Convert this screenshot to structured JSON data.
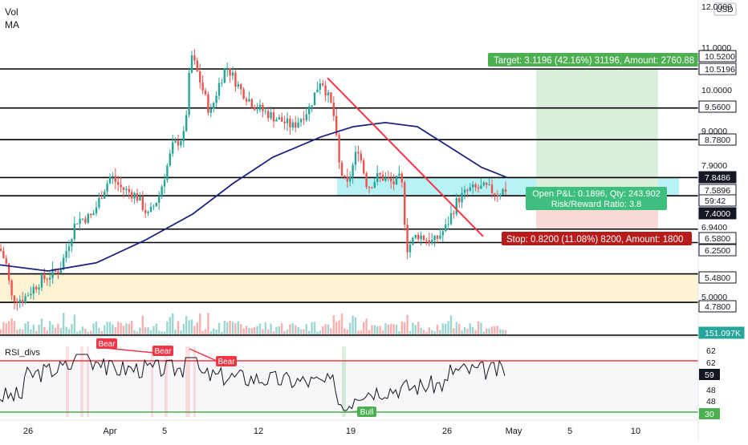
{
  "legend": {
    "vol": "Vol",
    "ma": "MA"
  },
  "currency": "USD",
  "rsi_label": "RSI_divs",
  "colors": {
    "up": "#26a69a",
    "down": "#ef5350",
    "ma": "#1a237e",
    "hline": "#000000",
    "trend": "#f23645",
    "zone_cyan": "#7fe8ef",
    "zone_orange": "#fff3d6",
    "target_fill": "#d9efdb",
    "stop_fill": "#f9d9d7",
    "target_label": "#4caf50",
    "stop_label": "#b71c1c",
    "pnl_label": "#3fbf7f",
    "rsi_line": "#131722",
    "rsi_upper": "#f23645",
    "rsi_lower": "#4caf50"
  },
  "price_axis": {
    "ticks": [
      "12.0000",
      "11.0000",
      "10.0000",
      "9.0000",
      "7.9000",
      "6.9400",
      "6.2500",
      "5.0000"
    ],
    "badges": [
      {
        "text": "10.5200",
        "style": "outline"
      },
      {
        "text": "10.5196",
        "style": "outline"
      },
      {
        "text": "9.5600",
        "style": "outline"
      },
      {
        "text": "8.7800",
        "style": "outline"
      },
      {
        "text": "7.8486",
        "style": "dark"
      },
      {
        "text": "7.5896",
        "style": "outline"
      },
      {
        "text": "59:42",
        "style": "outline"
      },
      {
        "text": "7.4000",
        "style": "dark"
      },
      {
        "text": "6.5800",
        "style": "outline"
      },
      {
        "text": "6.2500",
        "style": "outline"
      },
      {
        "text": "5.4800",
        "style": "outline"
      },
      {
        "text": "4.7800",
        "style": "outline"
      },
      {
        "text": "151.097K",
        "style": "teal"
      }
    ]
  },
  "rsi_axis": {
    "ticks": [
      "62",
      "62",
      "48",
      "48"
    ],
    "badges": [
      {
        "text": "59",
        "style": "dark"
      },
      {
        "text": "30",
        "style": "green"
      }
    ]
  },
  "time_axis": [
    "26",
    "Apr",
    "5",
    "12",
    "19",
    "26",
    "May",
    "5",
    "10"
  ],
  "position": {
    "target_text": "Target: 3.1196 (42.16%) 31196, Amount: 2760.88",
    "pnl_line1": "Open P&L: 0.1896, Qty: 243.902",
    "pnl_line2": "Risk/Reward Ratio: 3.8",
    "stop_text": "Stop: 0.8200 (11.08%) 8200, Amount: 1800"
  },
  "signals": {
    "bear": [
      "Bear",
      "Bear",
      "Bear"
    ],
    "bull": [
      "Bull"
    ]
  },
  "chart_data": {
    "type": "candlestick",
    "horizontal_levels": [
      10.52,
      9.56,
      8.78,
      7.8486,
      7.4,
      6.58,
      6.25,
      5.48,
      4.78
    ],
    "zones": [
      {
        "from": 7.4,
        "to": 7.8486,
        "color": "cyan"
      },
      {
        "from": 4.78,
        "to": 5.48,
        "color": "orange"
      }
    ],
    "trade": {
      "entry": 7.4,
      "target": 10.5196,
      "stop": 6.58,
      "last": 7.5896
    },
    "rsi_last": 59
  }
}
